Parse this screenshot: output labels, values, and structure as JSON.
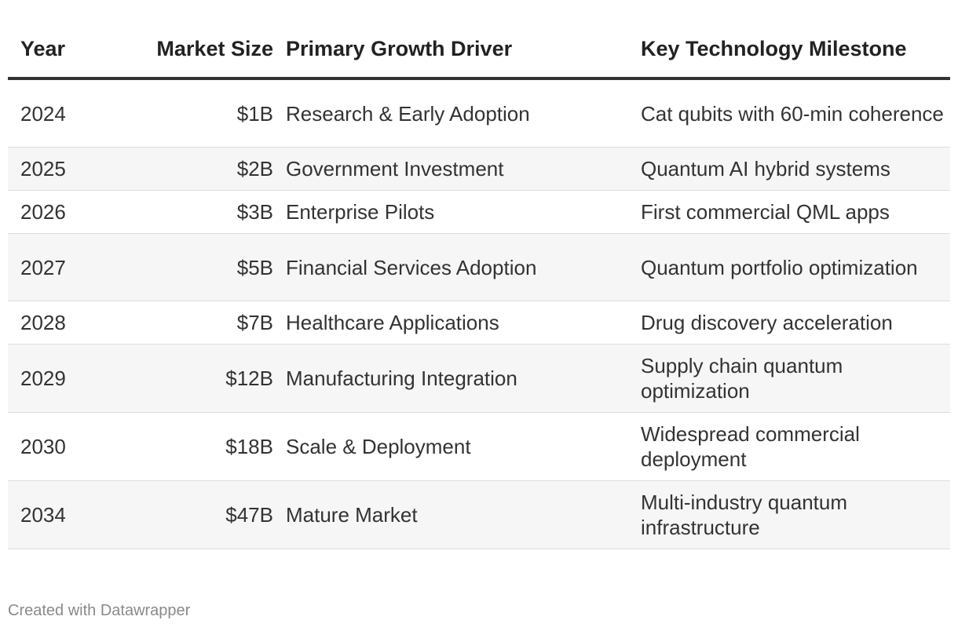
{
  "chart_data": {
    "type": "table",
    "columns": [
      "Year",
      "Market Size",
      "Primary Growth Driver",
      "Key Technology Milestone"
    ],
    "rows": [
      [
        "2024",
        "$1B",
        "Research & Early Adoption",
        "Cat qubits with 60-min coherence"
      ],
      [
        "2025",
        "$2B",
        "Government Investment",
        "Quantum AI hybrid systems"
      ],
      [
        "2026",
        "$3B",
        "Enterprise Pilots",
        "First commercial QML apps"
      ],
      [
        "2027",
        "$5B",
        "Financial Services Adoption",
        "Quantum portfolio optimization"
      ],
      [
        "2028",
        "$7B",
        "Healthcare Applications",
        "Drug discovery acceleration"
      ],
      [
        "2029",
        "$12B",
        "Manufacturing Integration",
        "Supply chain quantum optimization"
      ],
      [
        "2030",
        "$18B",
        "Scale & Deployment",
        "Widespread commercial deployment"
      ],
      [
        "2034",
        "$47B",
        "Mature Market",
        "Multi-industry quantum infrastructure"
      ]
    ]
  },
  "footer": "Created with Datawrapper"
}
